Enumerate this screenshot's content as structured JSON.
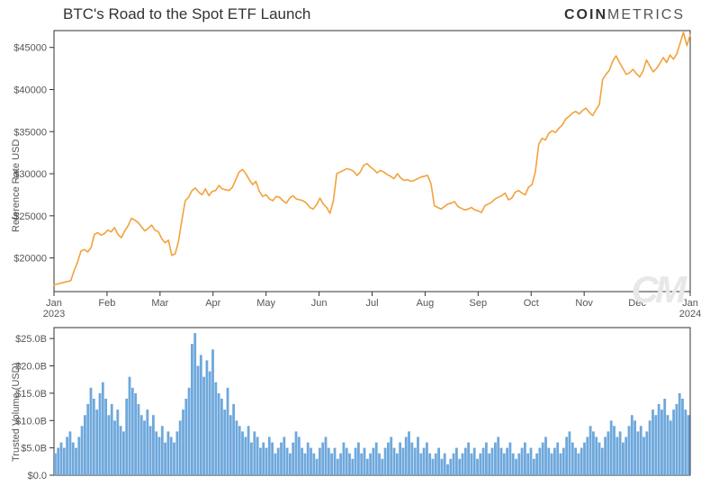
{
  "title": "BTC's Road to the Spot ETF Launch",
  "brand_prefix": "COIN",
  "brand_suffix": "METRICS",
  "watermark": "CM",
  "price_chart": {
    "type": "line",
    "ylabel": "Reference Rate USD",
    "ylim": [
      16000,
      47000
    ],
    "yticks": [
      20000,
      25000,
      30000,
      35000,
      40000,
      45000
    ],
    "ytick_labels": [
      "$20000",
      "$25000",
      "$30000",
      "$35000",
      "$40000",
      "$45000"
    ],
    "xticks_months": [
      "Jan",
      "Feb",
      "Mar",
      "Apr",
      "May",
      "Jun",
      "Jul",
      "Aug",
      "Sep",
      "Oct",
      "Nov",
      "Dec",
      "Jan"
    ],
    "x_year_left": "2023",
    "x_year_right": "2024",
    "line_color": "#f2a23c",
    "line_width": 1.6,
    "border_color": "#333333",
    "background_color": "#ffffff",
    "label_fontsize": 11,
    "data": [
      16800,
      16900,
      17000,
      17100,
      17200,
      17300,
      18500,
      19500,
      20800,
      21000,
      20700,
      21200,
      22800,
      23000,
      22700,
      22900,
      23300,
      23100,
      23600,
      22800,
      22400,
      23200,
      23800,
      24700,
      24500,
      24200,
      23700,
      23200,
      23500,
      23900,
      23300,
      23100,
      22300,
      21800,
      22100,
      20300,
      20500,
      22000,
      24500,
      26800,
      27200,
      28000,
      28300,
      27800,
      27500,
      28200,
      27400,
      27900,
      28000,
      28600,
      28200,
      28100,
      28000,
      28400,
      29300,
      30200,
      30500,
      30000,
      29300,
      28700,
      29100,
      27900,
      27300,
      27500,
      27000,
      26800,
      27300,
      27200,
      26800,
      26500,
      27100,
      27400,
      27000,
      26900,
      26800,
      26500,
      26000,
      25800,
      26300,
      27100,
      26400,
      26000,
      25300,
      26800,
      30000,
      30200,
      30400,
      30600,
      30500,
      30300,
      29800,
      30200,
      31000,
      31200,
      30800,
      30500,
      30100,
      30400,
      30200,
      29900,
      29700,
      29400,
      30000,
      29500,
      29200,
      29300,
      29100,
      29200,
      29400,
      29600,
      29700,
      29800,
      28800,
      26200,
      26000,
      25800,
      26100,
      26400,
      26500,
      26700,
      26100,
      25900,
      25700,
      25800,
      26000,
      25700,
      25600,
      25400,
      26200,
      26400,
      26600,
      27000,
      27200,
      27400,
      27700,
      26900,
      27100,
      27800,
      28000,
      27700,
      27500,
      28400,
      28700,
      30200,
      33500,
      34200,
      34000,
      34800,
      35100,
      34900,
      35400,
      35800,
      36500,
      36800,
      37200,
      37400,
      37100,
      37500,
      37800,
      37300,
      36900,
      37600,
      38200,
      41200,
      41800,
      42300,
      43400,
      44000,
      43200,
      42500,
      41800,
      42000,
      42400,
      41900,
      41500,
      42200,
      43500,
      42800,
      42100,
      42500,
      43100,
      43800,
      43200,
      44100,
      43600,
      44200,
      45500,
      46800,
      45200,
      46500
    ]
  },
  "volume_chart": {
    "type": "bar",
    "ylabel": "Trusted Volume (USD)",
    "ylim": [
      0,
      27
    ],
    "yticks": [
      0,
      5,
      10,
      15,
      20,
      25
    ],
    "ytick_labels": [
      "$0.0",
      "$5.0B",
      "$10.0B",
      "$15.0B",
      "$20.0B",
      "$25.0B"
    ],
    "bar_color": "#6ea8dc",
    "border_color": "#333333",
    "background_color": "#ffffff",
    "label_fontsize": 11,
    "data": [
      4,
      5,
      6,
      5,
      7,
      8,
      6,
      5,
      7,
      9,
      11,
      13,
      16,
      14,
      12,
      15,
      17,
      14,
      11,
      13,
      10,
      12,
      9,
      8,
      14,
      18,
      16,
      15,
      13,
      11,
      10,
      12,
      9,
      11,
      8,
      7,
      9,
      6,
      8,
      7,
      6,
      8,
      10,
      12,
      14,
      16,
      24,
      26,
      20,
      22,
      18,
      21,
      19,
      23,
      17,
      15,
      14,
      12,
      16,
      11,
      13,
      10,
      9,
      8,
      7,
      9,
      6,
      8,
      7,
      5,
      6,
      5,
      7,
      6,
      4,
      5,
      6,
      7,
      5,
      4,
      6,
      8,
      7,
      5,
      4,
      6,
      5,
      4,
      3,
      5,
      6,
      7,
      5,
      4,
      5,
      3,
      4,
      6,
      5,
      4,
      3,
      5,
      6,
      4,
      5,
      3,
      4,
      5,
      6,
      4,
      3,
      5,
      6,
      7,
      5,
      4,
      6,
      5,
      7,
      8,
      6,
      5,
      7,
      4,
      5,
      6,
      4,
      3,
      4,
      5,
      3,
      4,
      2,
      3,
      4,
      5,
      3,
      4,
      5,
      6,
      4,
      5,
      3,
      4,
      5,
      6,
      4,
      5,
      6,
      7,
      5,
      4,
      5,
      6,
      4,
      3,
      4,
      5,
      6,
      4,
      5,
      3,
      4,
      5,
      6,
      7,
      5,
      4,
      5,
      6,
      4,
      5,
      7,
      8,
      6,
      5,
      4,
      5,
      6,
      7,
      9,
      8,
      7,
      6,
      5,
      7,
      8,
      10,
      9,
      7,
      8,
      6,
      7,
      9,
      11,
      10,
      8,
      9,
      7,
      8,
      10,
      12,
      11,
      13,
      12,
      14,
      11,
      10,
      12,
      13,
      15,
      14,
      12,
      11
    ]
  }
}
